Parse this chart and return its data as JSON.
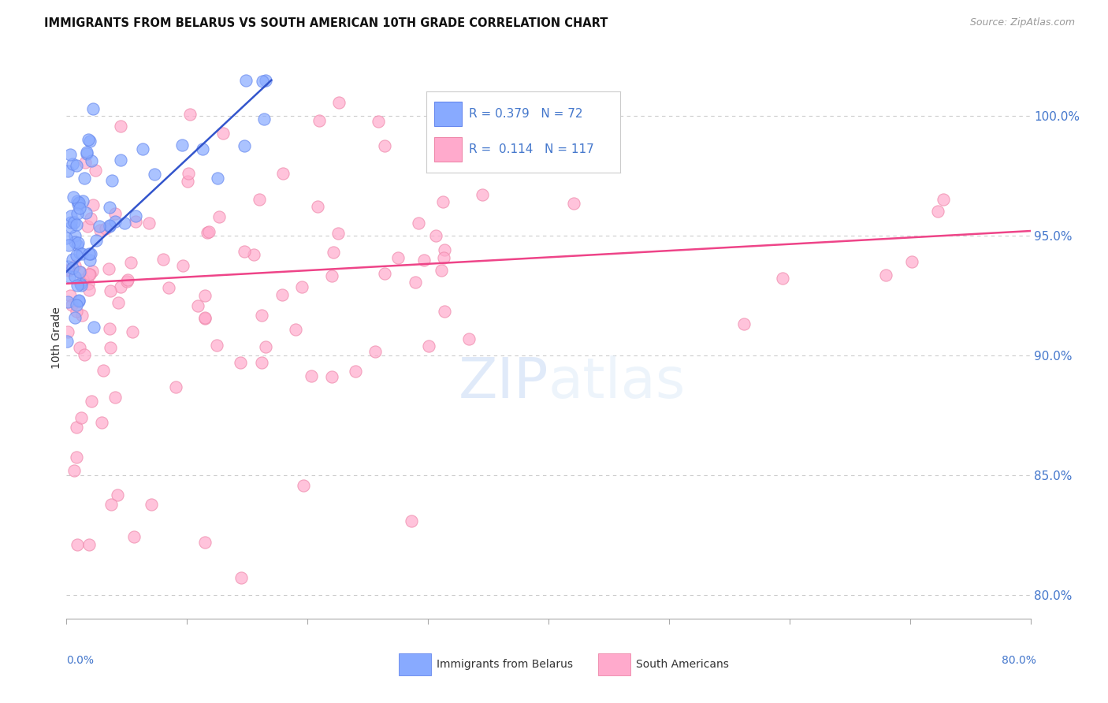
{
  "title": "IMMIGRANTS FROM BELARUS VS SOUTH AMERICAN 10TH GRADE CORRELATION CHART",
  "source": "Source: ZipAtlas.com",
  "ylabel": "10th Grade",
  "right_axis_ticks": [
    80.0,
    85.0,
    90.0,
    95.0,
    100.0
  ],
  "xmin": 0.0,
  "xmax": 80.0,
  "ymin": 79.0,
  "ymax": 102.5,
  "blue_R": 0.379,
  "blue_N": 72,
  "pink_R": 0.114,
  "pink_N": 117,
  "blue_color": "#88aaff",
  "pink_color": "#ffaacc",
  "blue_edge_color": "#6688ee",
  "pink_edge_color": "#ee88aa",
  "blue_line_color": "#3355cc",
  "pink_line_color": "#ee4488",
  "axis_color": "#4477cc",
  "grid_color": "#cccccc",
  "background_color": "#ffffff",
  "title_color": "#111111",
  "source_color": "#999999",
  "legend_label_blue": "Immigrants from Belarus",
  "legend_label_pink": "South Americans",
  "blue_line_x0": 0.0,
  "blue_line_y0": 93.5,
  "blue_line_x1": 17.0,
  "blue_line_y1": 101.5,
  "pink_line_x0": 0.0,
  "pink_line_y0": 93.0,
  "pink_line_x1": 80.0,
  "pink_line_y1": 95.2
}
